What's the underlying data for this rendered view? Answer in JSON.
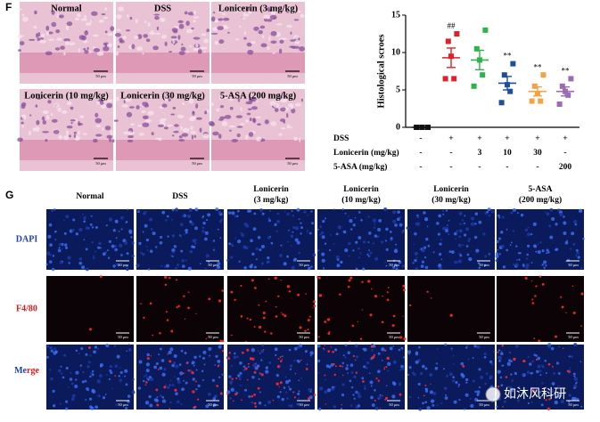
{
  "panel_f": {
    "label": "F",
    "images": [
      "Normal",
      "DSS",
      "Lonicerin (3 mg/kg)",
      "Lonicerin (10 mg/kg)",
      "Lonicerin (30 mg/kg)",
      "5-ASA (200 mg/kg)"
    ],
    "scale_bar": "50 μm"
  },
  "chart_data": {
    "type": "dot",
    "ylabel": "Histological scroes",
    "ylim": [
      0,
      15
    ],
    "yticks": [
      0,
      5,
      10,
      15
    ],
    "groups": [
      {
        "color": "#111111",
        "values": [
          0,
          0,
          0,
          0,
          0,
          0
        ],
        "mean": 0,
        "sem": 0
      },
      {
        "color": "#e0202a",
        "values": [
          12.5,
          11.5,
          9.5,
          6.5,
          6.5
        ],
        "mean": 9.3,
        "sem": 1.3,
        "annotation": "##"
      },
      {
        "color": "#2db34a",
        "values": [
          13,
          10.5,
          9,
          7,
          5.5
        ],
        "mean": 9,
        "sem": 1.3
      },
      {
        "color": "#1f4e9a",
        "values": [
          8.5,
          7,
          5.7,
          4.8,
          3.3
        ],
        "mean": 5.9,
        "sem": 0.9,
        "annotation": "**"
      },
      {
        "color": "#f4a340",
        "values": [
          7,
          5.5,
          4.5,
          3.5,
          3.5
        ],
        "mean": 4.8,
        "sem": 0.6,
        "annotation": "**"
      },
      {
        "color": "#9b6bb5",
        "values": [
          6.5,
          5.5,
          4.8,
          4.3,
          3.1
        ],
        "mean": 4.8,
        "sem": 0.6,
        "annotation": "**"
      }
    ],
    "table": [
      {
        "label": "DSS",
        "cells": [
          "-",
          "+",
          "+",
          "+",
          "+",
          "+"
        ]
      },
      {
        "label": "Lonicerin (mg/kg)",
        "cells": [
          "-",
          "-",
          "3",
          "10",
          "30",
          "-"
        ]
      },
      {
        "label": "5-ASA (mg/kg)",
        "cells": [
          "-",
          "-",
          "-",
          "-",
          "-",
          "200"
        ]
      }
    ]
  },
  "panel_g": {
    "label": "G",
    "columns": [
      "Normal",
      "DSS",
      "Lonicerin\n(3 mg/kg)",
      "Lonicerin\n(10 mg/kg)",
      "Lonicerin\n(30 mg/kg)",
      "5-ASA\n(200 mg/kg)"
    ],
    "rows": [
      "DAPI",
      "F4/80"
    ],
    "merge_label": [
      "Me",
      "rge"
    ],
    "scale_bar": "50 μm"
  },
  "watermark": "如沐风科研"
}
